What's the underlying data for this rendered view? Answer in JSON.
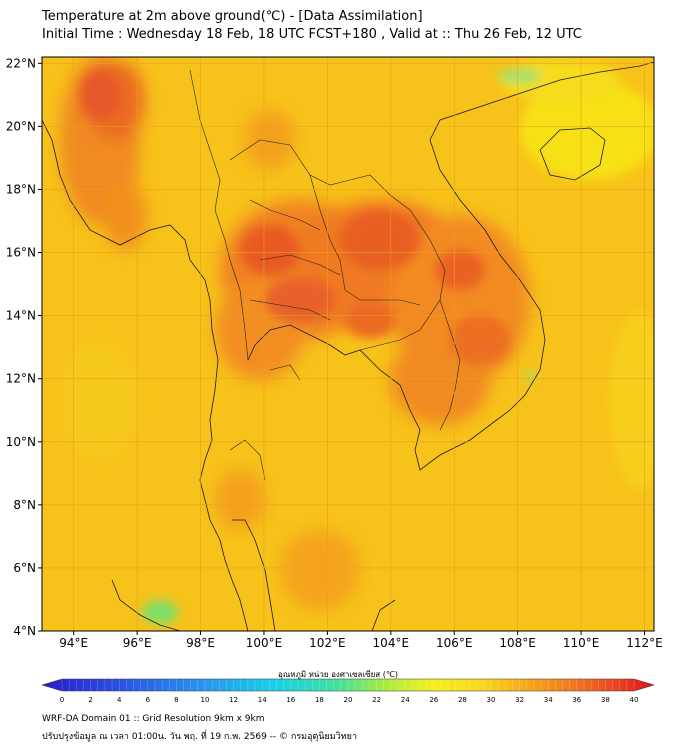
{
  "header": {
    "title": "Temperature at 2m above ground(℃) - [Data Assimilation]",
    "subtitle": "Initial Time : Wednesday 18 Feb, 18 UTC FCST+180 , Valid at :: Thu 26 Feb, 12 UTC"
  },
  "map": {
    "lon_range": [
      93,
      112.3
    ],
    "lat_range": [
      4,
      22.2
    ],
    "lat_ticks": [
      "22°N",
      "20°N",
      "18°N",
      "16°N",
      "14°N",
      "12°N",
      "10°N",
      "8°N",
      "6°N",
      "4°N"
    ],
    "lon_ticks": [
      "94°E",
      "96°E",
      "98°E",
      "100°E",
      "102°E",
      "104°E",
      "106°E",
      "108°E",
      "110°E",
      "112°E"
    ],
    "grid_color": "#e8a020",
    "background_color": "#f7c21a"
  },
  "colorbar": {
    "label": "อุณหภูมิ หน่วย องศาเซลเซียส (℃)",
    "ticks": [
      "0",
      "2",
      "4",
      "6",
      "8",
      "10",
      "12",
      "14",
      "16",
      "18",
      "20",
      "22",
      "24",
      "26",
      "28",
      "30",
      "32",
      "34",
      "36",
      "38",
      "40"
    ]
  },
  "footer": {
    "line1": "WRF-DA Domain 01 :: Grid Resolution 9km x 9km",
    "line2": "ปรับปรุงข้อมูล ณ เวลา 01:00น. วัน พฤ. ที่ 19 ก.พ. 2569 -- © กรมอุตุนิยมวิทยา"
  }
}
